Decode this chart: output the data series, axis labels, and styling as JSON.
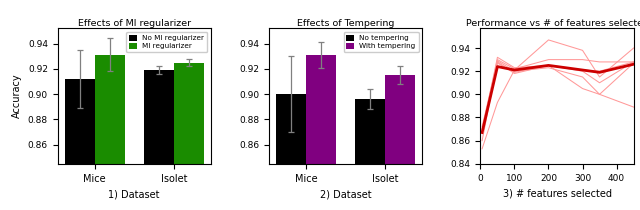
{
  "panel1": {
    "title": "Effects of MI regularizer",
    "xlabel": "1) Dataset",
    "ylabel": "Accuracy",
    "categories": [
      "Mice",
      "Isolet"
    ],
    "bar1_vals": [
      0.912,
      0.919
    ],
    "bar1_errs": [
      0.023,
      0.003
    ],
    "bar2_vals": [
      0.931,
      0.925
    ],
    "bar2_errs": [
      0.013,
      0.003
    ],
    "bar1_color": "#000000",
    "bar2_color": "#1a8c00",
    "legend_labels": [
      "No MI regularizer",
      "MI regularizer"
    ],
    "ylim": [
      0.845,
      0.952
    ],
    "yticks": [
      0.86,
      0.88,
      0.9,
      0.92,
      0.94
    ]
  },
  "panel2": {
    "title": "Effects of Tempering",
    "xlabel": "2) Dataset",
    "categories": [
      "Mice",
      "Isolet"
    ],
    "bar1_vals": [
      0.9,
      0.896
    ],
    "bar1_errs": [
      0.03,
      0.008
    ],
    "bar2_vals": [
      0.931,
      0.915
    ],
    "bar2_errs": [
      0.01,
      0.007
    ],
    "bar1_color": "#000000",
    "bar2_color": "#800080",
    "legend_labels": [
      "No tempering",
      "With tempering"
    ],
    "ylim": [
      0.845,
      0.952
    ],
    "yticks": [
      0.86,
      0.88,
      0.9,
      0.92,
      0.94
    ]
  },
  "panel3": {
    "title": "Performance vs # of features selected",
    "xlabel": "3) # features selected",
    "ylim": [
      0.84,
      0.957
    ],
    "yticks": [
      0.84,
      0.86,
      0.88,
      0.9,
      0.92,
      0.94
    ],
    "xlim": [
      0,
      450
    ],
    "xticks": [
      0,
      100,
      200,
      300,
      400
    ],
    "x_vals": [
      5,
      50,
      100,
      200,
      300,
      350,
      450
    ],
    "thin_lines": [
      [
        0.867,
        0.93,
        0.922,
        0.93,
        0.93,
        0.928,
        0.928
      ],
      [
        0.853,
        0.893,
        0.921,
        0.947,
        0.938,
        0.915,
        0.94
      ],
      [
        0.87,
        0.927,
        0.919,
        0.925,
        0.92,
        0.91,
        0.928
      ],
      [
        0.868,
        0.932,
        0.923,
        0.925,
        0.921,
        0.92,
        0.928
      ],
      [
        0.872,
        0.929,
        0.92,
        0.923,
        0.915,
        0.9,
        0.889
      ],
      [
        0.86,
        0.928,
        0.918,
        0.925,
        0.905,
        0.9,
        0.927
      ]
    ],
    "thick_line": [
      0.867,
      0.924,
      0.921,
      0.925,
      0.921,
      0.919,
      0.926
    ],
    "thin_color": "#ff9999",
    "thick_color": "#cc0000"
  }
}
